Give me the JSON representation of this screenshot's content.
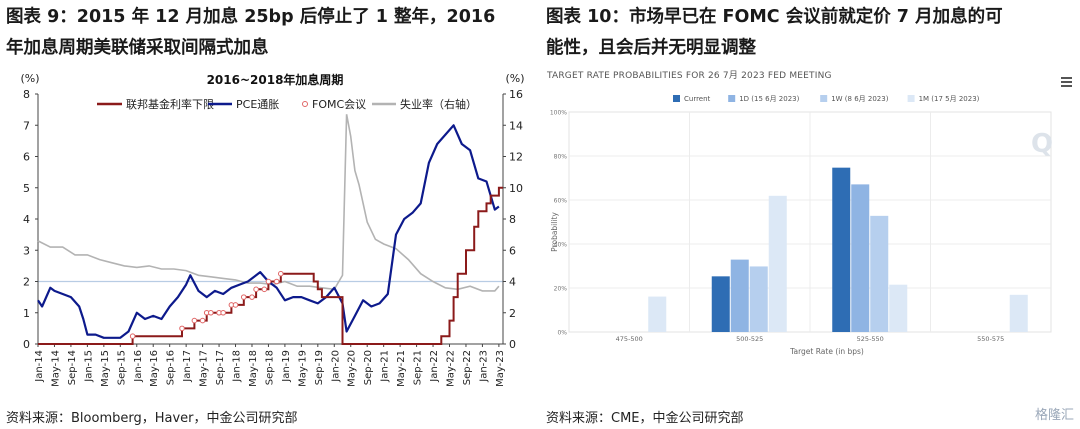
{
  "left_panel": {
    "title_line1": "图表 9：2015 年 12 月加息 25bp 后停止了 1 整年，2016",
    "title_line2": "年加息周期美联储采取间隔式加息",
    "source": "资料来源：Bloomberg，Haver，中金公司研究部"
  },
  "right_panel": {
    "title_line1": "图表 10：市场早已在 FOMC 会议前就定价 7 月加息的可",
    "title_line2": "能性，且会后并无明显调整",
    "source": "资料来源：CME，中金公司研究部"
  },
  "watermark": "格隆汇",
  "chart_data": [
    {
      "type": "line",
      "title": "2016~2018年加息周期",
      "left_unit": "(%)",
      "right_unit": "(%)",
      "ylim_left": [
        0,
        8
      ],
      "ylim_right": [
        0,
        16
      ],
      "yticks_left": [
        "0",
        "1",
        "2",
        "3",
        "4",
        "5",
        "6",
        "7",
        "8"
      ],
      "yticks_right": [
        "0",
        "2",
        "4",
        "6",
        "8",
        "10",
        "12",
        "14",
        "16"
      ],
      "x_tick_labels": [
        "Jan-14",
        "May-14",
        "Sep-14",
        "Jan-15",
        "May-15",
        "Sep-15",
        "Jan-16",
        "May-16",
        "Sep-16",
        "Jan-17",
        "May-17",
        "Sep-17",
        "Jan-18",
        "May-18",
        "Sep-18",
        "Jan-19",
        "May-19",
        "Sep-19",
        "Jan-20",
        "May-20",
        "Sep-20",
        "Jan-21",
        "May-21",
        "Sep-21",
        "Jan-22",
        "May-22",
        "Sep-22",
        "Jan-23",
        "May-23"
      ],
      "reference_line_left": 2,
      "legend": [
        "联邦基金利率下限",
        "PCE通胀",
        "FOMC会议",
        "失业率（右轴）"
      ],
      "colors": {
        "ffr": "#8b1a1a",
        "pce": "#0d1a8c",
        "fomc": "#e06666",
        "unemp": "#b3b3b3",
        "ref": "#b8cce4"
      },
      "series": [
        {
          "name": "联邦基金利率下限",
          "axis": "left",
          "x": [
            "Jan-14",
            "Dec-15",
            "Dec-16",
            "Mar-17",
            "Jun-17",
            "Dec-17",
            "Mar-18",
            "Jun-18",
            "Sep-18",
            "Dec-18",
            "Aug-19",
            "Sep-19",
            "Oct-19",
            "Mar-20",
            "Mar-22",
            "May-22",
            "Jun-22",
            "Jul-22",
            "Sep-22",
            "Nov-22",
            "Dec-22",
            "Feb-23",
            "Mar-23",
            "May-23",
            "Jun-23"
          ],
          "values": [
            0,
            0.25,
            0.5,
            0.75,
            1.0,
            1.25,
            1.5,
            1.75,
            2.0,
            2.25,
            2.0,
            1.75,
            1.5,
            0,
            0.25,
            0.75,
            1.5,
            2.25,
            3.0,
            3.75,
            4.25,
            4.5,
            4.75,
            5.0,
            5.0
          ]
        },
        {
          "name": "PCE通胀",
          "axis": "left",
          "x": [
            "Jan-14",
            "Feb-14",
            "Apr-14",
            "May-14",
            "Jul-14",
            "Sep-14",
            "Nov-14",
            "Dec-14",
            "Jan-15",
            "Mar-15",
            "May-15",
            "Jul-15",
            "Sep-15",
            "Nov-15",
            "Jan-16",
            "Mar-16",
            "May-16",
            "Jul-16",
            "Sep-16",
            "Nov-16",
            "Jan-17",
            "Feb-17",
            "Apr-17",
            "Jun-17",
            "Aug-17",
            "Oct-17",
            "Dec-17",
            "Feb-18",
            "Apr-18",
            "Jul-18",
            "Sep-18",
            "Nov-18",
            "Jan-19",
            "Mar-19",
            "May-19",
            "Jul-19",
            "Sep-19",
            "Nov-19",
            "Jan-20",
            "Mar-20",
            "Apr-20",
            "Jun-20",
            "Aug-20",
            "Oct-20",
            "Dec-20",
            "Feb-21",
            "Apr-21",
            "Jun-21",
            "Aug-21",
            "Oct-21",
            "Dec-21",
            "Feb-22",
            "Jun-22",
            "Aug-22",
            "Oct-22",
            "Dec-22",
            "Feb-23",
            "Apr-23",
            "May-23"
          ],
          "values": [
            1.4,
            1.2,
            1.8,
            1.7,
            1.6,
            1.5,
            1.2,
            0.8,
            0.3,
            0.3,
            0.2,
            0.2,
            0.2,
            0.4,
            1.0,
            0.8,
            0.9,
            0.8,
            1.2,
            1.5,
            1.9,
            2.2,
            1.7,
            1.5,
            1.7,
            1.6,
            1.8,
            1.9,
            2.0,
            2.3,
            2.0,
            1.8,
            1.4,
            1.5,
            1.5,
            1.4,
            1.3,
            1.5,
            1.8,
            1.3,
            0.4,
            0.9,
            1.4,
            1.2,
            1.3,
            1.6,
            3.5,
            4.0,
            4.2,
            4.5,
            5.8,
            6.4,
            7.0,
            6.4,
            6.2,
            5.3,
            5.2,
            4.3,
            4.4
          ]
        },
        {
          "name": "FOMC会议",
          "axis": "left",
          "x": [
            "Dec-15",
            "Dec-16",
            "Mar-17",
            "May-17",
            "Jun-17",
            "Jul-17",
            "Sep-17",
            "Oct-17",
            "Dec-17",
            "Jan-18",
            "Mar-18",
            "May-18",
            "Jun-18",
            "Aug-18",
            "Sep-18",
            "Nov-18",
            "Dec-18"
          ],
          "values": [
            0.25,
            0.5,
            0.75,
            0.75,
            1.0,
            1.0,
            1.0,
            1.0,
            1.25,
            1.25,
            1.5,
            1.5,
            1.75,
            1.75,
            2.0,
            2.0,
            2.25
          ]
        },
        {
          "name": "失业率（右轴）",
          "axis": "right",
          "x": [
            "Jan-14",
            "Apr-14",
            "Jul-14",
            "Oct-14",
            "Jan-15",
            "Apr-15",
            "Jul-15",
            "Oct-15",
            "Jan-16",
            "Apr-16",
            "Jul-16",
            "Oct-16",
            "Jan-17",
            "Apr-17",
            "Jul-17",
            "Oct-17",
            "Jan-18",
            "Apr-18",
            "Jul-18",
            "Oct-18",
            "Jan-19",
            "Apr-19",
            "Jul-19",
            "Oct-19",
            "Jan-20",
            "Mar-20",
            "Apr-20",
            "May-20",
            "Jun-20",
            "Jul-20",
            "Sep-20",
            "Nov-20",
            "Jan-21",
            "Apr-21",
            "Jul-21",
            "Oct-21",
            "Jan-22",
            "Apr-22",
            "Jul-22",
            "Oct-22",
            "Jan-23",
            "Apr-23",
            "May-23"
          ],
          "values": [
            6.6,
            6.2,
            6.2,
            5.7,
            5.7,
            5.4,
            5.2,
            5.0,
            4.9,
            5.0,
            4.8,
            4.8,
            4.7,
            4.4,
            4.3,
            4.2,
            4.1,
            3.9,
            3.9,
            3.8,
            4.0,
            3.7,
            3.7,
            3.6,
            3.5,
            4.4,
            14.7,
            13.3,
            11.1,
            10.2,
            7.8,
            6.7,
            6.4,
            6.1,
            5.4,
            4.5,
            4.0,
            3.6,
            3.5,
            3.7,
            3.4,
            3.4,
            3.7
          ]
        }
      ]
    },
    {
      "type": "bar",
      "title": "TARGET RATE PROBABILITIES FOR 26 7月 2023 FED MEETING",
      "xlabel": "Target Rate (in bps)",
      "ylabel": "Probability",
      "ylim": [
        0,
        100
      ],
      "yticks": [
        "0%",
        "20%",
        "40%",
        "60%",
        "80%",
        "100%"
      ],
      "categories": [
        "475-500",
        "500-525",
        "525-550",
        "550-575"
      ],
      "series": [
        {
          "name": "Current",
          "color": "#2e6db4",
          "values": [
            0,
            25.3,
            74.7,
            0
          ]
        },
        {
          "name": "1D (15 6月 2023)",
          "color": "#8fb4e3",
          "values": [
            0,
            32.9,
            67.1,
            0
          ]
        },
        {
          "name": "1W (8 6月 2023)",
          "color": "#b6cfee",
          "values": [
            0,
            29.8,
            52.8,
            0
          ]
        },
        {
          "name": "1M (17 5月 2023)",
          "color": "#dce8f6",
          "values": [
            16.1,
            61.9,
            21.5,
            16.9
          ]
        }
      ]
    }
  ]
}
